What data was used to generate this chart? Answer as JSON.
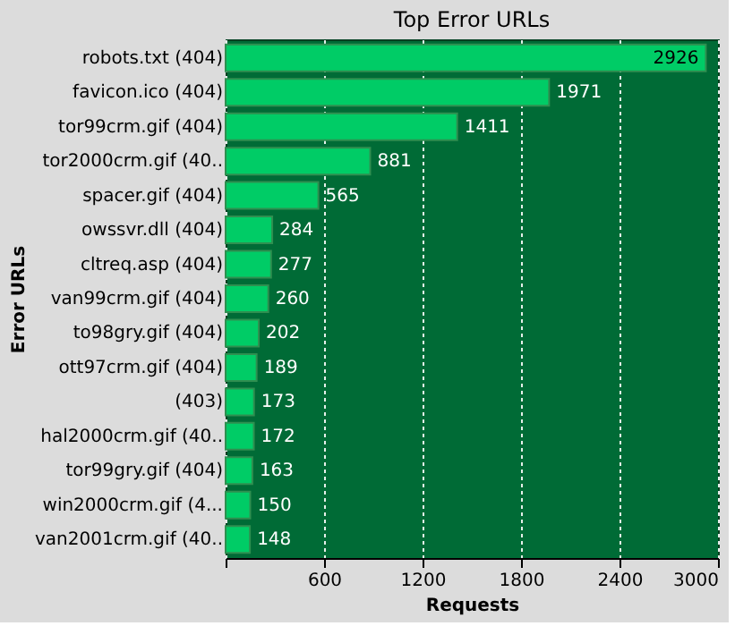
{
  "chart_data": {
    "type": "bar",
    "orientation": "horizontal",
    "title": "Top Error URLs",
    "xlabel": "Requests",
    "ylabel": "Error URLs",
    "categories": [
      "robots.txt (404)",
      "favicon.ico (404)",
      "tor99crm.gif (404)",
      "tor2000crm.gif (40..",
      "spacer.gif (404)",
      "owssvr.dll (404)",
      "cltreq.asp (404)",
      "van99crm.gif (404)",
      "to98gry.gif (404)",
      "ott97crm.gif (404)",
      "(403)",
      "hal2000crm.gif (40..",
      "tor99gry.gif (404)",
      "win2000crm.gif (4...",
      "van2001crm.gif (40.."
    ],
    "values": [
      2926,
      1971,
      1411,
      881,
      565,
      284,
      277,
      260,
      202,
      189,
      173,
      172,
      163,
      150,
      148
    ],
    "color": "#00cc66",
    "data_labels": true,
    "grid": "x",
    "xlim": [
      0,
      3000
    ],
    "xticks": [
      {
        "value": 0,
        "label": null
      },
      600,
      1200,
      1800,
      2400,
      3000
    ]
  }
}
